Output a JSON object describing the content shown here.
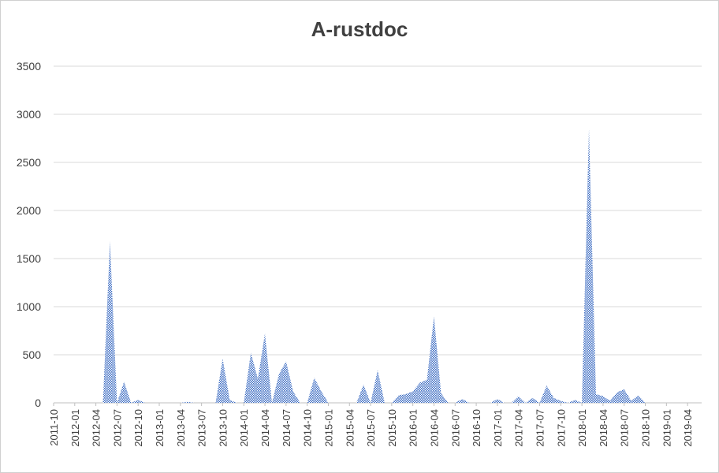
{
  "chart_data": {
    "type": "area",
    "title": "A-rustdoc",
    "xlabel": "",
    "ylabel": "",
    "ylim": [
      0,
      3500
    ],
    "yticks": [
      0,
      500,
      1000,
      1500,
      2000,
      2500,
      3000,
      3500
    ],
    "grid": true,
    "legend": "none",
    "fill_color": "#4472c4",
    "tick_labels": [
      "2011-10",
      "2012-01",
      "2012-04",
      "2012-07",
      "2012-10",
      "2013-01",
      "2013-04",
      "2013-07",
      "2013-10",
      "2014-01",
      "2014-04",
      "2014-07",
      "2014-10",
      "2015-01",
      "2015-04",
      "2015-07",
      "2015-10",
      "2016-01",
      "2016-04",
      "2016-07",
      "2016-10",
      "2017-01",
      "2017-04",
      "2017-07",
      "2017-10",
      "2018-01",
      "2018-04",
      "2018-07",
      "2018-10",
      "2019-01",
      "2019-04"
    ],
    "x": [
      "2011-10",
      "2011-11",
      "2011-12",
      "2012-01",
      "2012-02",
      "2012-03",
      "2012-04",
      "2012-05",
      "2012-06",
      "2012-07",
      "2012-08",
      "2012-09",
      "2012-10",
      "2012-11",
      "2012-12",
      "2013-01",
      "2013-02",
      "2013-03",
      "2013-04",
      "2013-05",
      "2013-06",
      "2013-07",
      "2013-08",
      "2013-09",
      "2013-10",
      "2013-11",
      "2013-12",
      "2014-01",
      "2014-02",
      "2014-03",
      "2014-04",
      "2014-05",
      "2014-06",
      "2014-07",
      "2014-08",
      "2014-09",
      "2014-10",
      "2014-11",
      "2014-12",
      "2015-01",
      "2015-02",
      "2015-03",
      "2015-04",
      "2015-05",
      "2015-06",
      "2015-07",
      "2015-08",
      "2015-09",
      "2015-10",
      "2015-11",
      "2015-12",
      "2016-01",
      "2016-02",
      "2016-03",
      "2016-04",
      "2016-05",
      "2016-06",
      "2016-07",
      "2016-08",
      "2016-09",
      "2016-10",
      "2016-11",
      "2016-12",
      "2017-01",
      "2017-02",
      "2017-03",
      "2017-04",
      "2017-05",
      "2017-06",
      "2017-07",
      "2017-08",
      "2017-09",
      "2017-10",
      "2017-11",
      "2017-12",
      "2018-01",
      "2018-02",
      "2018-03",
      "2018-04",
      "2018-05",
      "2018-06",
      "2018-07",
      "2018-08",
      "2018-09",
      "2018-10",
      "2018-11",
      "2018-12",
      "2019-01",
      "2019-02",
      "2019-03",
      "2019-04",
      "2019-05",
      "2019-06"
    ],
    "values": [
      0,
      0,
      0,
      0,
      0,
      0,
      0,
      0,
      1680,
      0,
      220,
      0,
      30,
      0,
      0,
      0,
      0,
      0,
      0,
      10,
      0,
      0,
      0,
      0,
      460,
      30,
      0,
      0,
      520,
      250,
      720,
      0,
      300,
      430,
      120,
      0,
      0,
      260,
      120,
      0,
      0,
      0,
      0,
      0,
      190,
      0,
      340,
      0,
      0,
      80,
      90,
      120,
      210,
      240,
      900,
      100,
      0,
      0,
      40,
      0,
      0,
      0,
      0,
      40,
      0,
      0,
      70,
      0,
      50,
      0,
      180,
      50,
      20,
      0,
      30,
      0,
      2850,
      90,
      70,
      20,
      110,
      140,
      20,
      80,
      0,
      0,
      0,
      0,
      0,
      0,
      0,
      0,
      0
    ]
  }
}
